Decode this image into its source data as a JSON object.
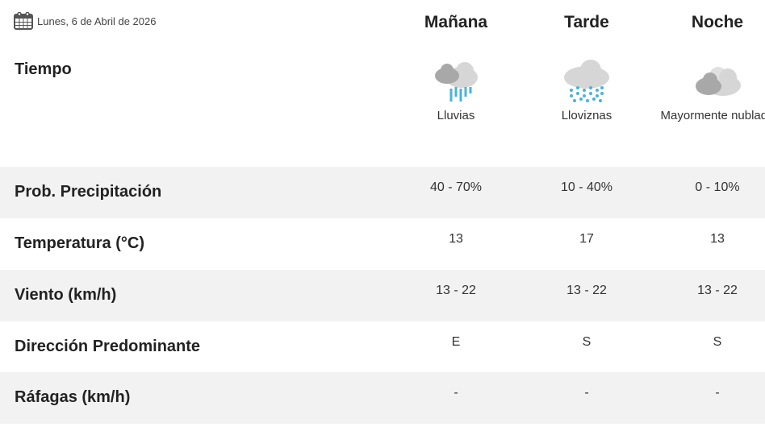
{
  "date": {
    "icon": "calendar-icon",
    "text": "Lunes, 6 de Abril de 2026"
  },
  "columns": [
    "Mañana",
    "Tarde",
    "Noche"
  ],
  "weather": {
    "label": "Tiempo",
    "items": [
      {
        "icon": "rain-cloud-icon",
        "desc": "Lluvias"
      },
      {
        "icon": "drizzle-cloud-icon",
        "desc": "Lloviznas"
      },
      {
        "icon": "mostly-cloudy-icon",
        "desc": "Mayormente nublado"
      }
    ]
  },
  "rows": [
    {
      "label": "Prob. Precipitación",
      "values": [
        "40 - 70%",
        "10 - 40%",
        "0 - 10%"
      ]
    },
    {
      "label": "Temperatura (°C)",
      "values": [
        "13",
        "17",
        "13"
      ]
    },
    {
      "label": "Viento (km/h)",
      "values": [
        "13 - 22",
        "13 - 22",
        "13 - 22"
      ]
    },
    {
      "label": "Dirección Predominante",
      "values": [
        "E",
        "S",
        "S"
      ]
    },
    {
      "label": "Ráfagas (km/h)",
      "values": [
        "-",
        "-",
        "-"
      ]
    }
  ],
  "colors": {
    "row_alt": "#f2f2f2",
    "rain": "#4ab3d6",
    "cloud_light": "#d6d6d6",
    "cloud_dark": "#a8a8a8"
  }
}
